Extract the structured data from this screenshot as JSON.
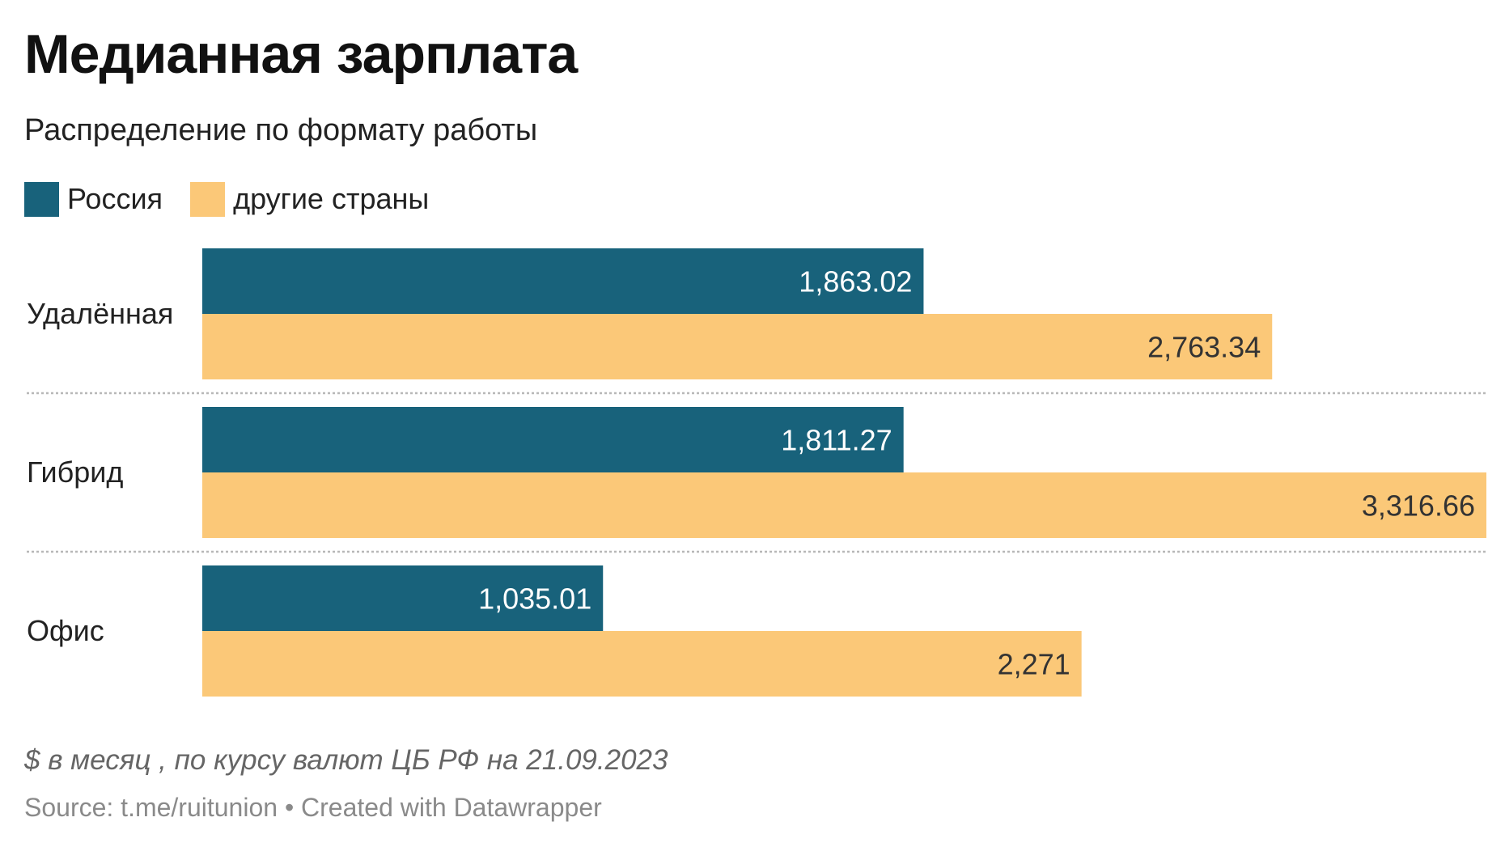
{
  "title": "Медианная зарплата",
  "subtitle": "Распределение по формату работы",
  "legend": [
    {
      "label": "Россия",
      "color": "#18627b"
    },
    {
      "label": "другие страны",
      "color": "#fbc878"
    }
  ],
  "notes": "$ в месяц , по курсу валют ЦБ РФ на 21.09.2023",
  "source": "Source: t.me/ruitunion • Created with Datawrapper",
  "chart_data": {
    "type": "bar",
    "orientation": "horizontal",
    "categories": [
      "Удалённая",
      "Гибрид",
      "Офис"
    ],
    "series": [
      {
        "name": "Россия",
        "color": "#18627b",
        "values": [
          1863.02,
          1811.27,
          1035.01
        ],
        "labels": [
          "1,863.02",
          "1,811.27",
          "1,035.01"
        ]
      },
      {
        "name": "другие страны",
        "color": "#fbc878",
        "values": [
          2763.34,
          3316.66,
          2271
        ],
        "labels": [
          "2,763.34",
          "3,316.66",
          "2,271"
        ]
      }
    ],
    "xlim": [
      0,
      3316.66
    ],
    "grid": false,
    "legend_position": "top-left"
  }
}
